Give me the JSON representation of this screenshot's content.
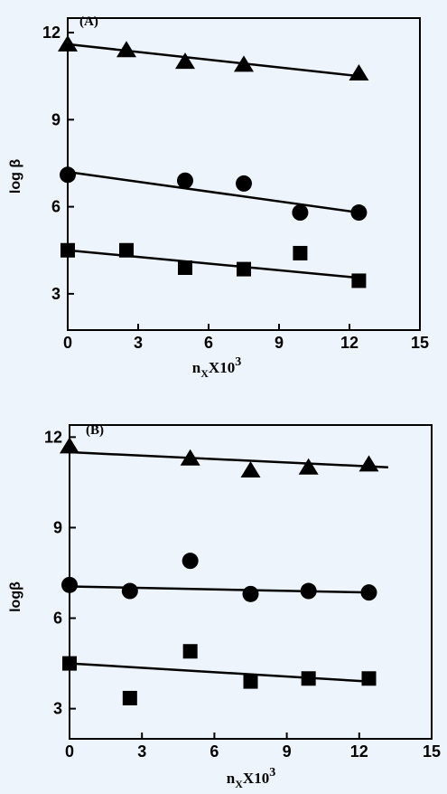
{
  "chart_data": [
    {
      "type": "scatter",
      "title": "(A)",
      "y_label": "log β",
      "x_label": {
        "base": "n",
        "sub": "X",
        "mid": "X10",
        "sup": "3"
      },
      "xlim": [
        0,
        15
      ],
      "ylim": [
        1.75,
        12.5
      ],
      "xticks": [
        0,
        3,
        6,
        9,
        12,
        15
      ],
      "yticks": [
        3,
        6,
        9,
        12
      ],
      "series": [
        {
          "marker": "triangle",
          "color": "#000000",
          "x": [
            0,
            2.5,
            5,
            7.5,
            12.4
          ],
          "values": [
            11.6,
            11.4,
            11.0,
            10.9,
            10.6
          ],
          "fit": {
            "x": [
              0,
              12.4
            ],
            "y": [
              11.6,
              10.5
            ]
          }
        },
        {
          "marker": "circle",
          "color": "#000000",
          "x": [
            0,
            5,
            7.5,
            9.9,
            12.4
          ],
          "values": [
            7.1,
            6.9,
            6.8,
            5.8,
            5.8
          ],
          "fit": {
            "x": [
              0,
              12.4
            ],
            "y": [
              7.2,
              5.8
            ]
          }
        },
        {
          "marker": "square",
          "color": "#000000",
          "x": [
            0,
            2.5,
            5,
            7.5,
            9.9,
            12.4
          ],
          "values": [
            4.5,
            4.5,
            3.9,
            3.85,
            4.4,
            3.45
          ],
          "fit": {
            "x": [
              0,
              12.4
            ],
            "y": [
              4.5,
              3.55
            ]
          }
        }
      ]
    },
    {
      "type": "scatter",
      "title": "(B)",
      "y_label": "logβ",
      "x_label": {
        "base": "n",
        "sub": "X",
        "mid": "X10",
        "sup": "3"
      },
      "xlim": [
        0,
        15
      ],
      "ylim": [
        2,
        12.4
      ],
      "xticks": [
        0,
        3,
        6,
        9,
        12,
        15
      ],
      "yticks": [
        3,
        6,
        9,
        12
      ],
      "series": [
        {
          "marker": "triangle",
          "color": "#000000",
          "x": [
            0,
            5,
            7.5,
            9.9,
            12.4
          ],
          "values": [
            11.7,
            11.3,
            10.9,
            11.0,
            11.1
          ],
          "fit": {
            "x": [
              0,
              13.2
            ],
            "y": [
              11.5,
              11.0
            ]
          }
        },
        {
          "marker": "circle",
          "color": "#000000",
          "x": [
            0,
            2.5,
            5,
            7.5,
            9.9,
            12.4
          ],
          "values": [
            7.1,
            6.9,
            7.9,
            6.8,
            6.9,
            6.85
          ],
          "fit": {
            "x": [
              0,
              12.4
            ],
            "y": [
              7.05,
              6.85
            ]
          }
        },
        {
          "marker": "square",
          "color": "#000000",
          "x": [
            0,
            2.5,
            5,
            7.5,
            9.9,
            12.4
          ],
          "values": [
            4.5,
            3.35,
            4.9,
            3.9,
            4.0,
            4.0
          ],
          "fit": {
            "x": [
              0,
              12.4
            ],
            "y": [
              4.5,
              3.9
            ]
          }
        }
      ]
    }
  ]
}
